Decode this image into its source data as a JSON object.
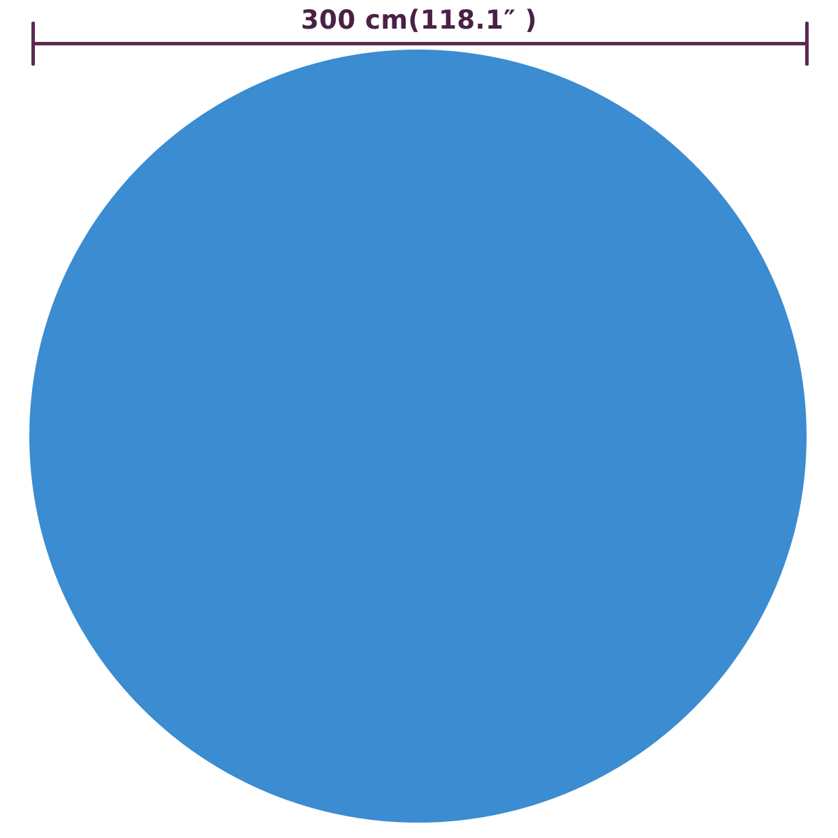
{
  "diagram": {
    "dimension_label": "300 cm(118.1″ )",
    "shape": "circle"
  },
  "colors": {
    "background": "#ffffff",
    "dimension_line": "#5b2a55",
    "dimension_text": "#4a2145",
    "circle_fill": "#3b8cd1",
    "circle_edge_shade": "#2f77ba"
  }
}
